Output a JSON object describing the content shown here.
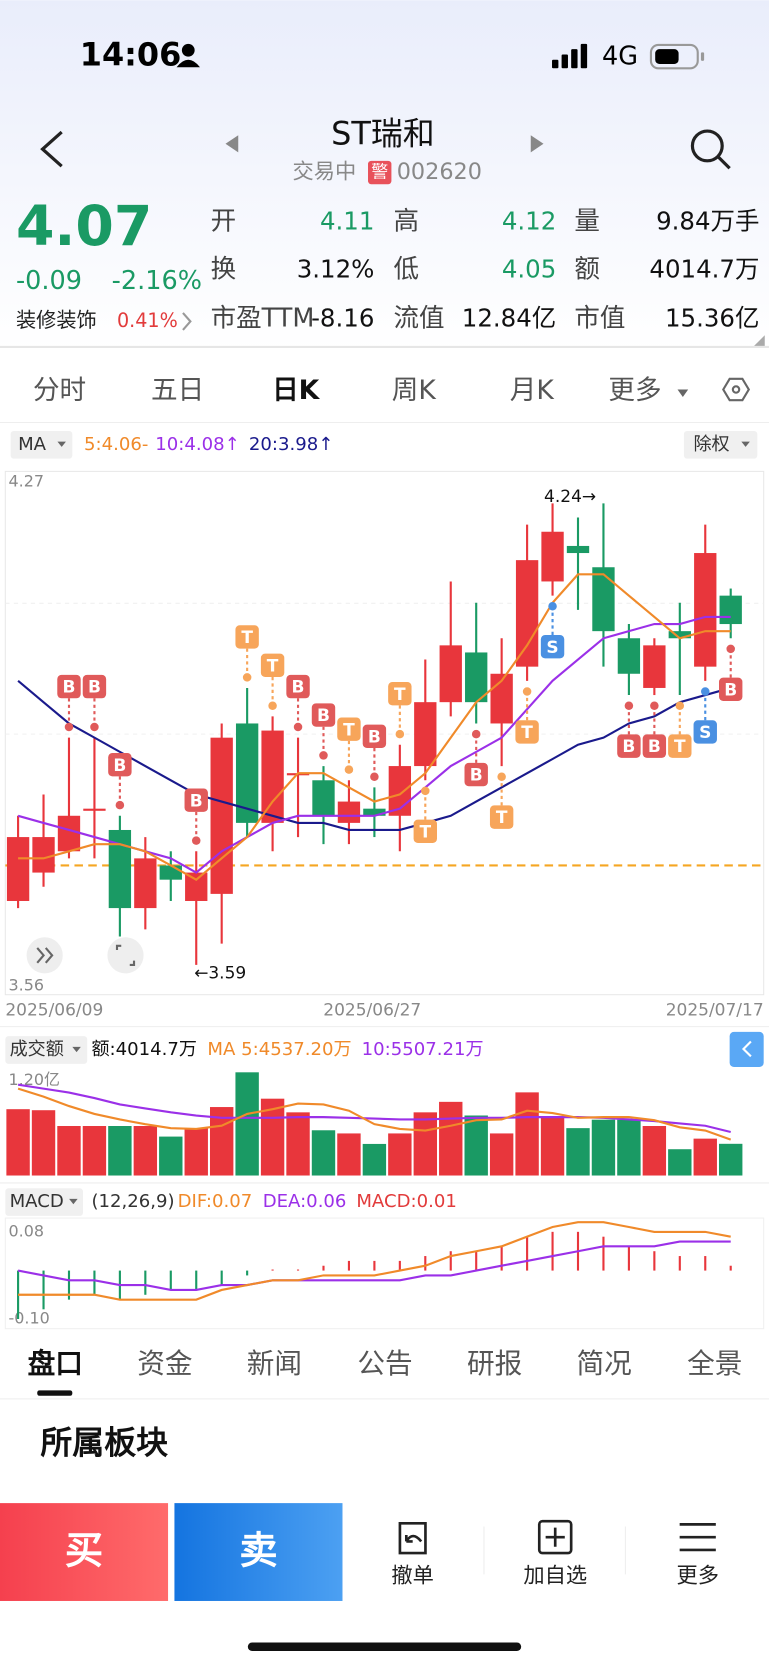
{
  "status_bar": {
    "time": "14:06",
    "network": "4G"
  },
  "header": {
    "title": "ST瑞和",
    "status": "交易中",
    "badge": "警",
    "code": "002620"
  },
  "quote": {
    "price": "4.07",
    "change": "-0.09",
    "change_pct": "-2.16%",
    "sector": "装修装饰",
    "sector_pct": "0.41%",
    "fields": [
      {
        "label": "开",
        "value": "4.11"
      },
      {
        "label": "高",
        "value": "4.12"
      },
      {
        "label": "量",
        "value": "9.84万手"
      },
      {
        "label": "换",
        "value": "3.12%"
      },
      {
        "label": "低",
        "value": "4.05"
      },
      {
        "label": "额",
        "value": "4014.7万"
      },
      {
        "label": "市盈TTM",
        "value": "-8.16"
      },
      {
        "label": "流值",
        "value": "12.84亿"
      },
      {
        "label": "市值",
        "value": "15.36亿"
      }
    ]
  },
  "tabs": [
    "分时",
    "五日",
    "日K",
    "周K",
    "月K",
    "更多"
  ],
  "kline": {
    "type": "candlestick",
    "indicator": "MA",
    "ma_legend": [
      "5:4.06-",
      "10:4.08↑",
      "20:3.98↑"
    ],
    "adjust": "除权",
    "ylim": [
      3.56,
      4.27
    ],
    "yticks": [
      4.27,
      3.56
    ],
    "dates": [
      "2025/06/09",
      "2025/06/27",
      "2025/07/17"
    ],
    "open": [
      3.68,
      3.72,
      3.75,
      3.81,
      3.78,
      3.67,
      3.73,
      3.68,
      3.69,
      3.93,
      3.79,
      3.86,
      3.85,
      3.79,
      3.81,
      3.8,
      3.87,
      3.96,
      4.03,
      3.93,
      4.01,
      4.13,
      4.18,
      4.15,
      4.05,
      3.98,
      4.06,
      4.01,
      4.11
    ],
    "high": [
      3.8,
      3.83,
      3.91,
      3.91,
      3.8,
      3.77,
      3.75,
      3.75,
      3.93,
      3.98,
      3.94,
      3.91,
      3.87,
      3.85,
      3.84,
      3.9,
      4.02,
      4.13,
      4.1,
      4.05,
      4.21,
      4.24,
      4.22,
      4.24,
      4.07,
      4.05,
      4.1,
      4.21,
      4.12
    ],
    "low": [
      3.67,
      3.7,
      3.74,
      3.74,
      3.63,
      3.64,
      3.68,
      3.59,
      3.62,
      3.77,
      3.75,
      3.77,
      3.76,
      3.76,
      3.77,
      3.75,
      3.85,
      3.94,
      3.93,
      3.87,
      3.99,
      4.11,
      4.09,
      4.01,
      3.97,
      3.97,
      3.97,
      3.99,
      4.05
    ],
    "close": [
      3.77,
      3.77,
      3.8,
      3.81,
      3.67,
      3.74,
      3.71,
      3.72,
      3.91,
      3.79,
      3.92,
      3.86,
      3.8,
      3.82,
      3.8,
      3.87,
      3.96,
      4.04,
      3.96,
      4.0,
      4.16,
      4.2,
      4.17,
      4.06,
      4.0,
      4.04,
      4.05,
      4.17,
      4.07
    ],
    "ma5": [
      3.74,
      3.74,
      3.75,
      3.76,
      3.76,
      3.75,
      3.73,
      3.71,
      3.74,
      3.77,
      3.82,
      3.86,
      3.86,
      3.84,
      3.82,
      3.83,
      3.86,
      3.91,
      3.96,
      3.99,
      4.04,
      4.1,
      4.14,
      4.14,
      4.11,
      4.08,
      4.05,
      4.06,
      4.06
    ],
    "ma10": [
      3.8,
      3.79,
      3.78,
      3.77,
      3.76,
      3.75,
      3.74,
      3.72,
      3.75,
      3.77,
      3.79,
      3.8,
      3.8,
      3.8,
      3.8,
      3.81,
      3.84,
      3.87,
      3.89,
      3.91,
      3.95,
      3.99,
      4.02,
      4.05,
      4.06,
      4.07,
      4.07,
      4.08,
      4.08
    ],
    "ma20": [
      3.99,
      3.96,
      3.93,
      3.91,
      3.89,
      3.87,
      3.85,
      3.83,
      3.82,
      3.81,
      3.8,
      3.79,
      3.79,
      3.78,
      3.78,
      3.78,
      3.79,
      3.8,
      3.82,
      3.84,
      3.86,
      3.88,
      3.9,
      3.91,
      3.93,
      3.94,
      3.96,
      3.97,
      3.98
    ],
    "cost_line": 3.73,
    "annotations": [
      {
        "candle": 21,
        "text": "4.24→"
      },
      {
        "candle": 7,
        "text": "←3.59"
      }
    ],
    "signals": [
      {
        "candle": 2,
        "label": "B",
        "pos": "above"
      },
      {
        "candle": 3,
        "label": "B",
        "pos": "above"
      },
      {
        "candle": 4,
        "label": "B",
        "pos": "above"
      },
      {
        "candle": 7,
        "label": "B",
        "pos": "above"
      },
      {
        "candle": 9,
        "label": "T",
        "pos": "above"
      },
      {
        "candle": 10,
        "label": "T",
        "pos": "above"
      },
      {
        "candle": 11,
        "label": "B",
        "pos": "above"
      },
      {
        "candle": 12,
        "label": "B",
        "pos": "above"
      },
      {
        "candle": 13,
        "label": "T",
        "pos": "above"
      },
      {
        "candle": 14,
        "label": "B",
        "pos": "above"
      },
      {
        "candle": 15,
        "label": "T",
        "pos": "above"
      },
      {
        "candle": 16,
        "label": "T",
        "pos": "below"
      },
      {
        "candle": 18,
        "label": "B",
        "pos": "below"
      },
      {
        "candle": 19,
        "label": "T",
        "pos": "below"
      },
      {
        "candle": 20,
        "label": "T",
        "pos": "below"
      },
      {
        "candle": 21,
        "label": "S",
        "pos": "below"
      },
      {
        "candle": 24,
        "label": "B",
        "pos": "below"
      },
      {
        "candle": 25,
        "label": "B",
        "pos": "below"
      },
      {
        "candle": 26,
        "label": "T",
        "pos": "below"
      },
      {
        "candle": 27,
        "label": "S",
        "pos": "below"
      },
      {
        "candle": 28,
        "label": "B",
        "pos": "below"
      }
    ]
  },
  "volume": {
    "name": "成交额",
    "amount": "额:4014.7万",
    "ma5_label": "MA 5:4537.20万",
    "ma10_label": "10:5507.21万",
    "ylim": [
      0,
      13200
    ],
    "yticks": [
      {
        "value": 12000,
        "label": "1.20亿"
      }
    ],
    "values": [
      8400,
      8270,
      6270,
      6270,
      6270,
      6270,
      4930,
      6000,
      8670,
      13070,
      9730,
      8000,
      5730,
      5330,
      4000,
      5330,
      8000,
      9330,
      7600,
      5330,
      10530,
      7330,
      6000,
      7070,
      7070,
      6270,
      3330,
      4670,
      4014.7
    ],
    "ma5": [
      11000,
      10000,
      8800,
      7800,
      7100,
      6500,
      6000,
      5900,
      6300,
      7800,
      8400,
      9100,
      9000,
      8200,
      6500,
      5900,
      5700,
      6300,
      7000,
      7100,
      8200,
      7900,
      7300,
      7400,
      7400,
      7000,
      6100,
      5700,
      4537.2
    ],
    "ma10": [
      11500,
      11000,
      10500,
      9800,
      9000,
      8500,
      8000,
      7600,
      7300,
      7300,
      7300,
      7400,
      7400,
      7300,
      7200,
      7100,
      7100,
      7200,
      7300,
      7300,
      7400,
      7400,
      7400,
      7300,
      7100,
      6900,
      6600,
      6300,
      5507.21
    ]
  },
  "macd": {
    "name": "MACD",
    "params": "(12,26,9)",
    "dif_label": "DIF:0.07",
    "dea_label": "DEA:0.06",
    "macd_label": "MACD:0.01",
    "ylim": [
      -0.12,
      0.11
    ],
    "yticks": [
      {
        "value": 0.08,
        "label": "0.08"
      },
      {
        "value": -0.1,
        "label": "-0.10"
      }
    ],
    "values": [
      -0.1,
      -0.08,
      -0.06,
      -0.05,
      -0.06,
      -0.05,
      -0.04,
      -0.04,
      -0.03,
      -0.01,
      0.0,
      0.0,
      0.01,
      0.02,
      0.02,
      0.02,
      0.03,
      0.04,
      0.04,
      0.05,
      0.07,
      0.08,
      0.08,
      0.07,
      0.05,
      0.04,
      0.03,
      0.03,
      0.01
    ],
    "dif": [
      -0.05,
      -0.05,
      -0.05,
      -0.05,
      -0.06,
      -0.06,
      -0.06,
      -0.06,
      -0.04,
      -0.03,
      -0.02,
      -0.02,
      -0.01,
      -0.01,
      -0.01,
      0.0,
      0.01,
      0.03,
      0.04,
      0.05,
      0.07,
      0.09,
      0.1,
      0.1,
      0.09,
      0.08,
      0.08,
      0.08,
      0.07
    ],
    "dea": [
      0.0,
      -0.01,
      -0.02,
      -0.02,
      -0.03,
      -0.03,
      -0.04,
      -0.04,
      -0.03,
      -0.03,
      -0.02,
      -0.02,
      -0.02,
      -0.02,
      -0.02,
      -0.02,
      -0.01,
      -0.01,
      0.0,
      0.01,
      0.02,
      0.03,
      0.04,
      0.05,
      0.05,
      0.05,
      0.06,
      0.06,
      0.06
    ]
  },
  "detail_tabs": [
    "盘口",
    "资金",
    "新闻",
    "公告",
    "研报",
    "简况",
    "全景"
  ],
  "section_title": "所属板块",
  "actions": {
    "buy": "买",
    "sell": "卖",
    "items": [
      "撤单",
      "加自选",
      "更多"
    ]
  }
}
